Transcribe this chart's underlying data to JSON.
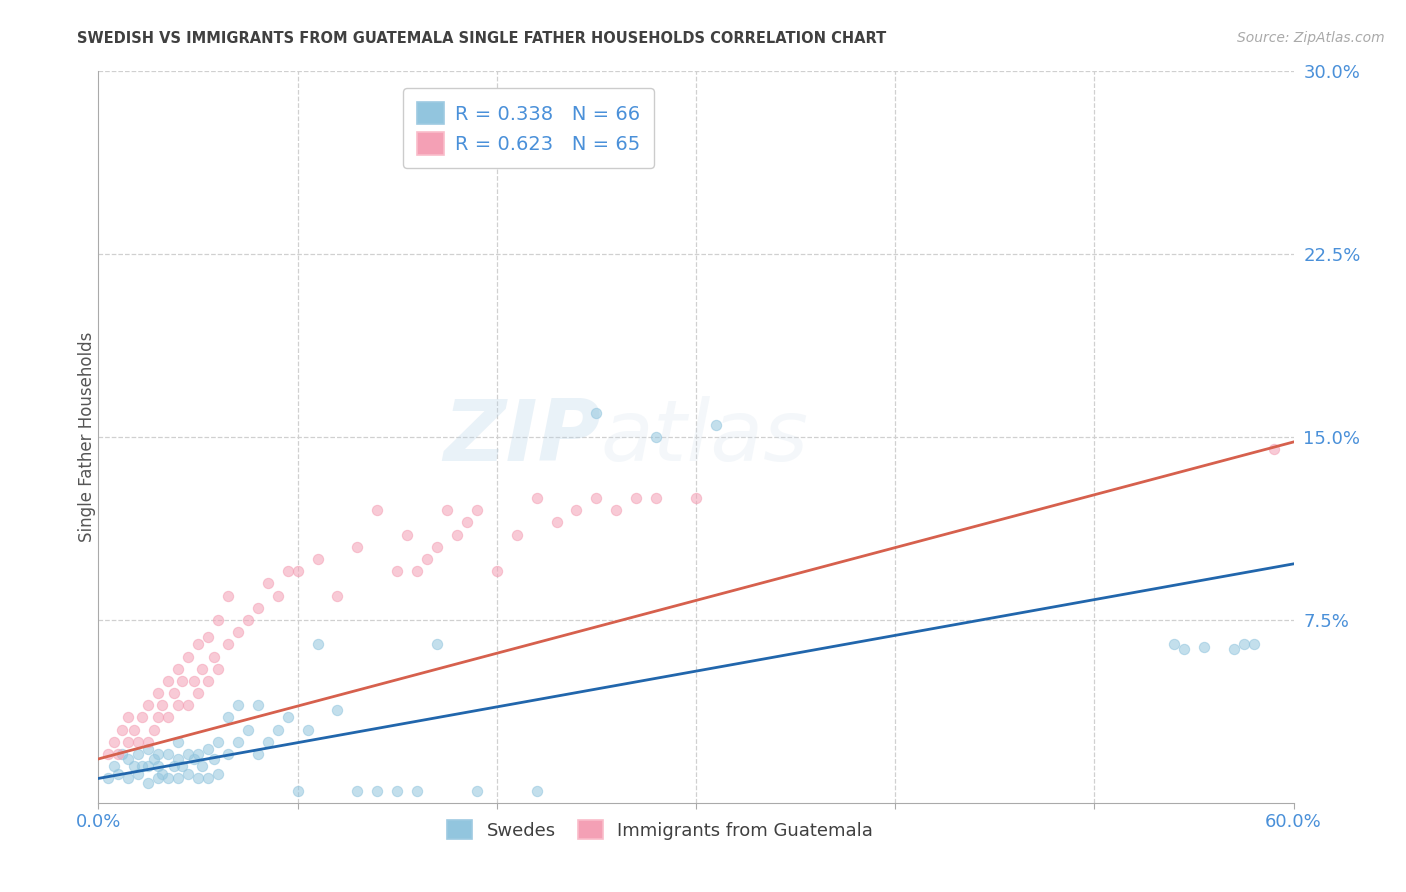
{
  "title": "SWEDISH VS IMMIGRANTS FROM GUATEMALA SINGLE FATHER HOUSEHOLDS CORRELATION CHART",
  "source": "Source: ZipAtlas.com",
  "ylabel": "Single Father Households",
  "ytick_labels": [
    "7.5%",
    "15.0%",
    "22.5%",
    "30.0%"
  ],
  "ytick_values": [
    0.075,
    0.15,
    0.225,
    0.3
  ],
  "xlim": [
    0.0,
    0.6
  ],
  "ylim": [
    0.0,
    0.3
  ],
  "xtick_positions": [
    0.0,
    0.1,
    0.2,
    0.3,
    0.4,
    0.5,
    0.6
  ],
  "legend_label1": "Swedes",
  "legend_label2": "Immigrants from Guatemala",
  "R1": 0.338,
  "N1": 66,
  "R2": 0.623,
  "N2": 65,
  "color_blue": "#92c5de",
  "color_pink": "#f4a0b5",
  "color_blue_line": "#2166ac",
  "color_pink_line": "#d6604d",
  "color_blue_text": "#4a90d9",
  "background_color": "#ffffff",
  "title_color": "#404040",
  "source_color": "#aaaaaa",
  "ylabel_color": "#555555",
  "scatter_alpha": 0.55,
  "scatter_size": 55,
  "swedes_x": [
    0.005,
    0.008,
    0.01,
    0.012,
    0.015,
    0.015,
    0.018,
    0.02,
    0.02,
    0.022,
    0.025,
    0.025,
    0.025,
    0.028,
    0.03,
    0.03,
    0.03,
    0.032,
    0.035,
    0.035,
    0.038,
    0.04,
    0.04,
    0.04,
    0.042,
    0.045,
    0.045,
    0.048,
    0.05,
    0.05,
    0.052,
    0.055,
    0.055,
    0.058,
    0.06,
    0.06,
    0.065,
    0.065,
    0.07,
    0.07,
    0.075,
    0.08,
    0.08,
    0.085,
    0.09,
    0.095,
    0.1,
    0.105,
    0.11,
    0.12,
    0.13,
    0.14,
    0.15,
    0.16,
    0.17,
    0.19,
    0.22,
    0.25,
    0.28,
    0.31,
    0.54,
    0.545,
    0.555,
    0.57,
    0.575,
    0.58
  ],
  "swedes_y": [
    0.01,
    0.015,
    0.012,
    0.02,
    0.01,
    0.018,
    0.015,
    0.012,
    0.02,
    0.015,
    0.008,
    0.015,
    0.022,
    0.018,
    0.01,
    0.015,
    0.02,
    0.012,
    0.01,
    0.02,
    0.015,
    0.01,
    0.018,
    0.025,
    0.015,
    0.012,
    0.02,
    0.018,
    0.01,
    0.02,
    0.015,
    0.01,
    0.022,
    0.018,
    0.012,
    0.025,
    0.02,
    0.035,
    0.025,
    0.04,
    0.03,
    0.02,
    0.04,
    0.025,
    0.03,
    0.035,
    0.005,
    0.03,
    0.065,
    0.038,
    0.005,
    0.005,
    0.005,
    0.005,
    0.065,
    0.005,
    0.005,
    0.16,
    0.15,
    0.155,
    0.065,
    0.063,
    0.064,
    0.063,
    0.065,
    0.065
  ],
  "guatemala_x": [
    0.005,
    0.008,
    0.01,
    0.012,
    0.015,
    0.015,
    0.018,
    0.02,
    0.022,
    0.025,
    0.025,
    0.028,
    0.03,
    0.03,
    0.032,
    0.035,
    0.035,
    0.038,
    0.04,
    0.04,
    0.042,
    0.045,
    0.045,
    0.048,
    0.05,
    0.05,
    0.052,
    0.055,
    0.055,
    0.058,
    0.06,
    0.06,
    0.065,
    0.065,
    0.07,
    0.075,
    0.08,
    0.085,
    0.09,
    0.095,
    0.1,
    0.11,
    0.12,
    0.13,
    0.14,
    0.15,
    0.155,
    0.16,
    0.165,
    0.17,
    0.175,
    0.18,
    0.185,
    0.19,
    0.2,
    0.21,
    0.22,
    0.23,
    0.24,
    0.25,
    0.26,
    0.27,
    0.28,
    0.3,
    0.59
  ],
  "guatemala_y": [
    0.02,
    0.025,
    0.02,
    0.03,
    0.025,
    0.035,
    0.03,
    0.025,
    0.035,
    0.025,
    0.04,
    0.03,
    0.035,
    0.045,
    0.04,
    0.035,
    0.05,
    0.045,
    0.04,
    0.055,
    0.05,
    0.04,
    0.06,
    0.05,
    0.045,
    0.065,
    0.055,
    0.05,
    0.068,
    0.06,
    0.055,
    0.075,
    0.065,
    0.085,
    0.07,
    0.075,
    0.08,
    0.09,
    0.085,
    0.095,
    0.095,
    0.1,
    0.085,
    0.105,
    0.12,
    0.095,
    0.11,
    0.095,
    0.1,
    0.105,
    0.12,
    0.11,
    0.115,
    0.12,
    0.095,
    0.11,
    0.125,
    0.115,
    0.12,
    0.125,
    0.12,
    0.125,
    0.125,
    0.125,
    0.145
  ],
  "watermark_zip": "ZIP",
  "watermark_atlas": "atlas",
  "grid_color": "#d0d0d0",
  "spine_color": "#cccccc"
}
